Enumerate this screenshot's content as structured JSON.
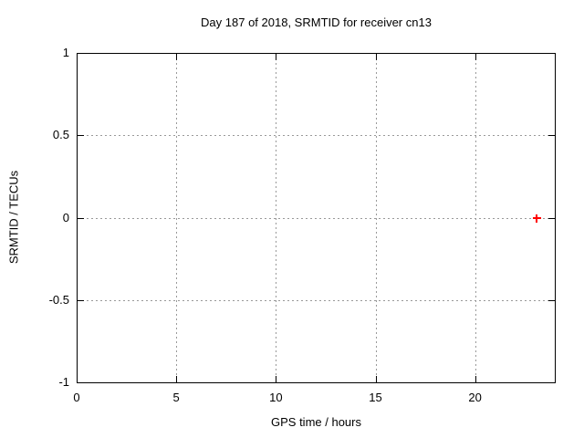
{
  "chart_data": {
    "type": "scatter",
    "title": "Day 187 of 2018, SRMTID for receiver cn13",
    "xlabel": "GPS time / hours",
    "ylabel": "SRMTID / TECUs",
    "xlim": [
      0,
      24
    ],
    "ylim": [
      -1,
      1
    ],
    "xticks": [
      0,
      5,
      10,
      15,
      20
    ],
    "yticks": [
      -1,
      -0.5,
      0,
      0.5,
      1
    ],
    "grid": true,
    "legend": "none",
    "series": [
      {
        "marker": "plus",
        "color": "#ff0000",
        "points": [
          [
            23.1,
            0.0
          ]
        ]
      }
    ]
  },
  "colors": {
    "background": "#ffffff",
    "axis": "#000000",
    "grid": "#999999",
    "text": "#000000",
    "point": "#ff0000"
  }
}
